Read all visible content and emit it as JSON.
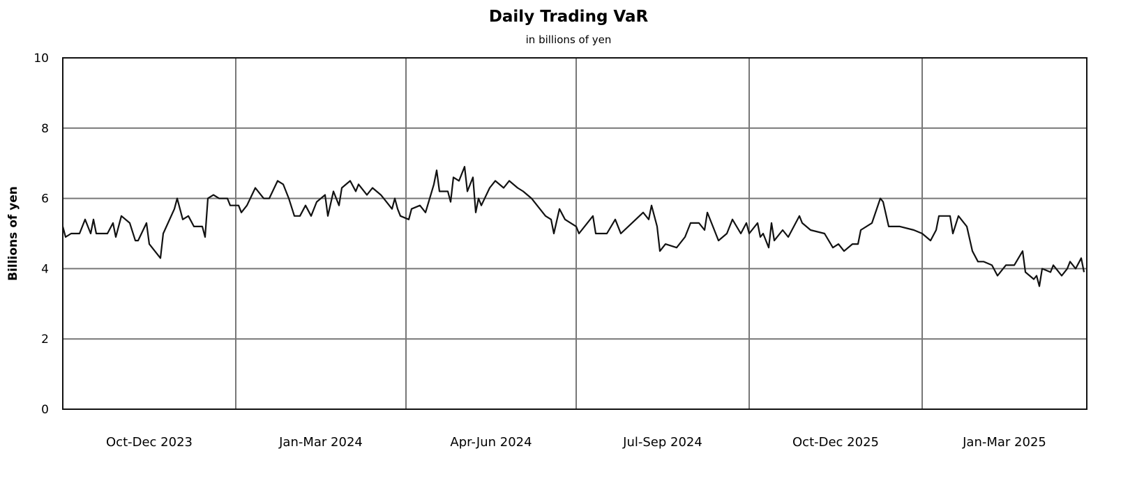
{
  "chart_data": {
    "type": "line",
    "title": "Daily Trading VaR",
    "subtitle": "in billions of yen",
    "xlabel": "",
    "ylabel": "Billions of yen",
    "ylim": [
      0,
      10
    ],
    "yticks": [
      0,
      2,
      4,
      6,
      8,
      10
    ],
    "xlim": [
      0,
      367
    ],
    "grid": true,
    "legend": "none",
    "quarter_boundaries": [
      0,
      62,
      123,
      184,
      246,
      308,
      367
    ],
    "categories": [
      "Oct-Dec 2023",
      "Jan-Mar 2024",
      "Apr-Jun 2024",
      "Jul-Sep 2024",
      "Oct-Dec 2025",
      "Jan-Mar 2025"
    ],
    "series": [
      {
        "name": "Daily Trading VaR",
        "color": "#111111",
        "x": [
          0,
          1,
          3,
          6,
          8,
          10,
          11,
          12,
          16,
          18,
          19,
          21,
          24,
          26,
          27,
          30,
          31,
          35,
          36,
          40,
          41,
          43,
          45,
          47,
          50,
          51,
          52,
          54,
          56,
          59,
          60,
          63,
          64,
          66,
          69,
          71,
          72,
          74,
          77,
          79,
          81,
          83,
          85,
          87,
          89,
          91,
          94,
          95,
          97,
          99,
          100,
          103,
          105,
          106,
          109,
          111,
          114,
          116,
          118,
          119,
          120,
          121,
          124,
          125,
          128,
          130,
          133,
          134,
          135,
          138,
          139,
          140,
          142,
          144,
          145,
          147,
          148,
          149,
          150,
          153,
          155,
          158,
          160,
          163,
          165,
          168,
          170,
          173,
          175,
          176,
          178,
          180,
          184,
          185,
          188,
          190,
          191,
          195,
          198,
          200,
          204,
          208,
          210,
          211,
          213,
          214,
          216,
          220,
          223,
          225,
          228,
          230,
          231,
          233,
          235,
          238,
          240,
          243,
          245,
          246,
          249,
          250,
          251,
          253,
          254,
          255,
          258,
          260,
          264,
          265,
          268,
          273,
          276,
          278,
          280,
          283,
          285,
          286,
          290,
          293,
          294,
          296,
          300,
          305,
          308,
          311,
          313,
          314,
          316,
          318,
          319,
          321,
          324,
          326,
          328,
          330,
          333,
          335,
          338,
          341,
          344,
          345,
          348,
          349,
          350,
          351,
          354,
          355,
          358,
          360,
          361,
          363,
          365,
          366
        ],
        "y": [
          5.2,
          4.9,
          5.0,
          5.0,
          5.4,
          5.0,
          5.4,
          5.0,
          5.0,
          5.3,
          4.9,
          5.5,
          5.3,
          4.8,
          4.8,
          5.3,
          4.7,
          4.3,
          5.0,
          5.7,
          6.0,
          5.4,
          5.5,
          5.2,
          5.2,
          4.9,
          6.0,
          6.1,
          6.0,
          6.0,
          5.8,
          5.8,
          5.6,
          5.8,
          6.3,
          6.1,
          6.0,
          6.0,
          6.5,
          6.4,
          6.0,
          5.5,
          5.5,
          5.8,
          5.5,
          5.9,
          6.1,
          5.5,
          6.2,
          5.8,
          6.3,
          6.5,
          6.2,
          6.4,
          6.1,
          6.3,
          6.1,
          5.9,
          5.7,
          6.0,
          5.7,
          5.5,
          5.4,
          5.7,
          5.8,
          5.6,
          6.4,
          6.8,
          6.2,
          6.2,
          5.9,
          6.6,
          6.5,
          6.9,
          6.2,
          6.6,
          5.6,
          6.0,
          5.8,
          6.3,
          6.5,
          6.3,
          6.5,
          6.3,
          6.2,
          6.0,
          5.8,
          5.5,
          5.4,
          5.0,
          5.7,
          5.4,
          5.2,
          5.0,
          5.3,
          5.5,
          5.0,
          5.0,
          5.4,
          5.0,
          5.3,
          5.6,
          5.4,
          5.8,
          5.2,
          4.5,
          4.7,
          4.6,
          4.9,
          5.3,
          5.3,
          5.1,
          5.6,
          5.2,
          4.8,
          5.0,
          5.4,
          5.0,
          5.3,
          5.0,
          5.3,
          4.9,
          5.0,
          4.6,
          5.3,
          4.8,
          5.1,
          4.9,
          5.5,
          5.3,
          5.1,
          5.0,
          4.6,
          4.7,
          4.5,
          4.7,
          4.7,
          5.1,
          5.3,
          6.0,
          5.9,
          5.2,
          5.2,
          5.1,
          5.0,
          4.8,
          5.1,
          5.5,
          5.5,
          5.5,
          5.0,
          5.5,
          5.2,
          4.5,
          4.2,
          4.2,
          4.1,
          3.8,
          4.1,
          4.1,
          4.5,
          3.9,
          3.7,
          3.8,
          3.5,
          4.0,
          3.9,
          4.1,
          3.8,
          4.0,
          4.2,
          4.0,
          4.3,
          3.9
        ]
      }
    ]
  }
}
